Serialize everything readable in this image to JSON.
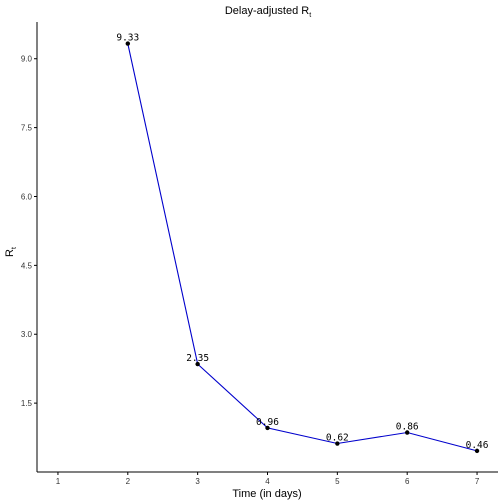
{
  "chart_data": {
    "type": "line",
    "title": "Delay-adjusted R",
    "title_subscript": "t",
    "xlabel": "Time (in days)",
    "ylabel": "R",
    "ylabel_subscript": "t",
    "x_ticks": [
      "1",
      "2",
      "3",
      "4",
      "5",
      "6",
      "7"
    ],
    "y_ticks": [
      "1.5",
      "3.0",
      "4.5",
      "6.0",
      "7.5",
      "9.0"
    ],
    "xlim": [
      0.7,
      7.3
    ],
    "ylim": [
      0,
      9.8
    ],
    "grid": false,
    "colors": {
      "line": "#0000cc",
      "point": "#000000",
      "axis": "#000000"
    },
    "series": [
      {
        "x": [
          2,
          3,
          4,
          5,
          6,
          7
        ],
        "values": [
          9.33,
          2.35,
          0.96,
          0.62,
          0.86,
          0.46
        ],
        "labels": [
          "9.33",
          "2.35",
          "0.96",
          "0.62",
          "0.86",
          "0.46"
        ]
      }
    ]
  }
}
